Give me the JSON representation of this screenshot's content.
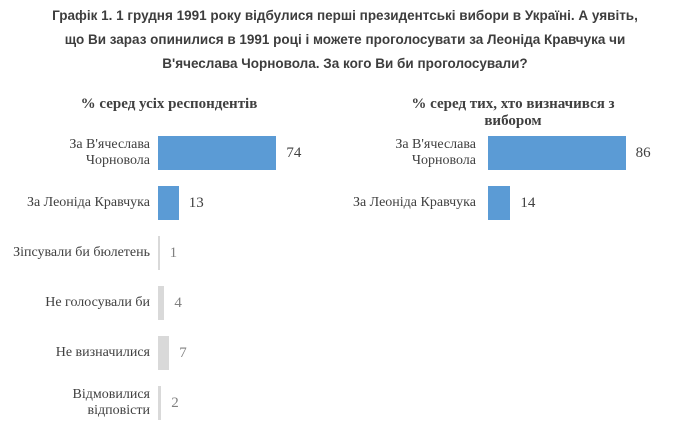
{
  "header": {
    "lines": [
      "Графік 1. 1 грудня 1991 року відбулися перші президентські вибори в Україні. А уявіть,",
      "що Ви зараз опинилися в 1991 році і можете проголосувати за Леоніда Кравчука чи",
      "В'ячеслава Чорновола. За кого Ви би проголосували?"
    ]
  },
  "colors": {
    "accent_blue": "#5b9bd5",
    "bar_gray": "#d9d9d9",
    "text_dark": "#404040",
    "value_muted": "#808080"
  },
  "chart_data": [
    {
      "type": "bar",
      "orientation": "horizontal",
      "title": "% серед усіх респондентів",
      "categories": [
        "За В'ячеслава Чорновола",
        "За Леоніда Кравчука",
        "Зіпсували би бюлетень",
        "Не голосували би",
        "Не визначилися",
        "Відмовилися відповісти"
      ],
      "values": [
        74,
        13,
        1,
        4,
        7,
        2
      ],
      "bar_colors": [
        "#5b9bd5",
        "#5b9bd5",
        "#d9d9d9",
        "#d9d9d9",
        "#d9d9d9",
        "#d9d9d9"
      ],
      "xlim": [
        0,
        100
      ],
      "data_labels": true,
      "grid": false,
      "legend": false
    },
    {
      "type": "bar",
      "orientation": "horizontal",
      "title": "% серед тих, хто визначився з вибором",
      "categories": [
        "За В'ячеслава Чорновола",
        "За Леоніда Кравчука"
      ],
      "values": [
        86,
        14
      ],
      "bar_colors": [
        "#5b9bd5",
        "#5b9bd5"
      ],
      "xlim": [
        0,
        100
      ],
      "data_labels": true,
      "grid": false,
      "legend": false
    }
  ]
}
